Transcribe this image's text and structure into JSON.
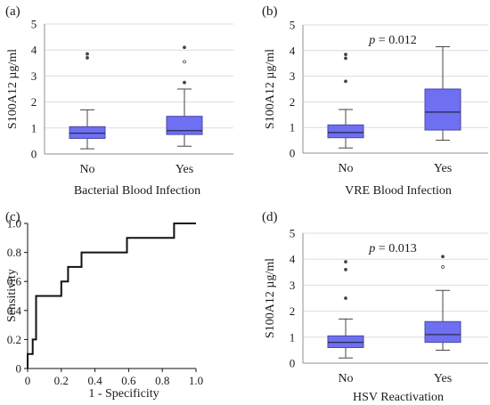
{
  "chart_data": [
    {
      "type": "box",
      "panel_label": "(a)",
      "title": "",
      "ylabel": "S100A12 µg/ml",
      "xlabel": "Bacterial Blood Infection",
      "ylim": [
        0,
        5
      ],
      "yticks": [
        "0",
        "1",
        "2",
        "3",
        "4",
        "5"
      ],
      "annotation": "",
      "categories": [
        "No",
        "Yes"
      ],
      "boxes": [
        {
          "name": "No",
          "whisker_low": 0.2,
          "q1": 0.6,
          "median": 0.8,
          "q3": 1.05,
          "whisker_high": 1.7,
          "outliers": [
            3.7,
            3.85
          ]
        },
        {
          "name": "Yes",
          "whisker_low": 0.3,
          "q1": 0.75,
          "median": 0.9,
          "q3": 1.45,
          "whisker_high": 2.5,
          "outliers": [
            2.75,
            3.55,
            4.1
          ]
        }
      ]
    },
    {
      "type": "box",
      "panel_label": "(b)",
      "title": "",
      "ylabel": "S100A12 µg/ml",
      "xlabel": "VRE Blood Infection",
      "ylim": [
        0,
        5
      ],
      "yticks": [
        "0",
        "1",
        "2",
        "3",
        "4",
        "5"
      ],
      "annotation_p": "p",
      "annotation_rest": " = 0.012",
      "categories": [
        "No",
        "Yes"
      ],
      "boxes": [
        {
          "name": "No",
          "whisker_low": 0.2,
          "q1": 0.6,
          "median": 0.8,
          "q3": 1.1,
          "whisker_high": 1.7,
          "outliers": [
            2.8,
            3.7,
            3.85
          ]
        },
        {
          "name": "Yes",
          "whisker_low": 0.5,
          "q1": 0.9,
          "median": 1.6,
          "q3": 2.5,
          "whisker_high": 4.15,
          "outliers": []
        }
      ]
    },
    {
      "type": "line",
      "panel_label": "(c)",
      "title": "",
      "ylabel": "Sensitivity",
      "xlabel": "1 - Specificity",
      "xlim": [
        0,
        1
      ],
      "ylim": [
        0,
        1
      ],
      "xticks": [
        "0",
        "0.2",
        "0.4",
        "0.6",
        "0.8",
        "1.0"
      ],
      "yticks": [
        "0",
        "0.2",
        "0.4",
        "0.6",
        "0.8",
        "1.0"
      ],
      "x": [
        0,
        0,
        0.03,
        0.03,
        0.05,
        0.05,
        0.2,
        0.2,
        0.24,
        0.24,
        0.32,
        0.32,
        0.59,
        0.59,
        0.87,
        0.87,
        1.0
      ],
      "y": [
        0,
        0.1,
        0.1,
        0.2,
        0.2,
        0.5,
        0.5,
        0.6,
        0.6,
        0.7,
        0.7,
        0.8,
        0.8,
        0.9,
        0.9,
        1.0,
        1.0
      ]
    },
    {
      "type": "box",
      "panel_label": "(d)",
      "title": "",
      "ylabel": "S100A12 µg/ml",
      "xlabel": "HSV Reactivation",
      "ylim": [
        0,
        5
      ],
      "yticks": [
        "0",
        "1",
        "2",
        "3",
        "4",
        "5"
      ],
      "annotation_p": "p",
      "annotation_rest": " = 0.013",
      "categories": [
        "No",
        "Yes"
      ],
      "boxes": [
        {
          "name": "No",
          "whisker_low": 0.2,
          "q1": 0.6,
          "median": 0.8,
          "q3": 1.05,
          "whisker_high": 1.7,
          "outliers": [
            2.5,
            3.6,
            3.9
          ]
        },
        {
          "name": "Yes",
          "whisker_low": 0.5,
          "q1": 0.8,
          "median": 1.1,
          "q3": 1.6,
          "whisker_high": 2.8,
          "outliers": [
            3.7,
            4.1
          ]
        }
      ]
    }
  ]
}
